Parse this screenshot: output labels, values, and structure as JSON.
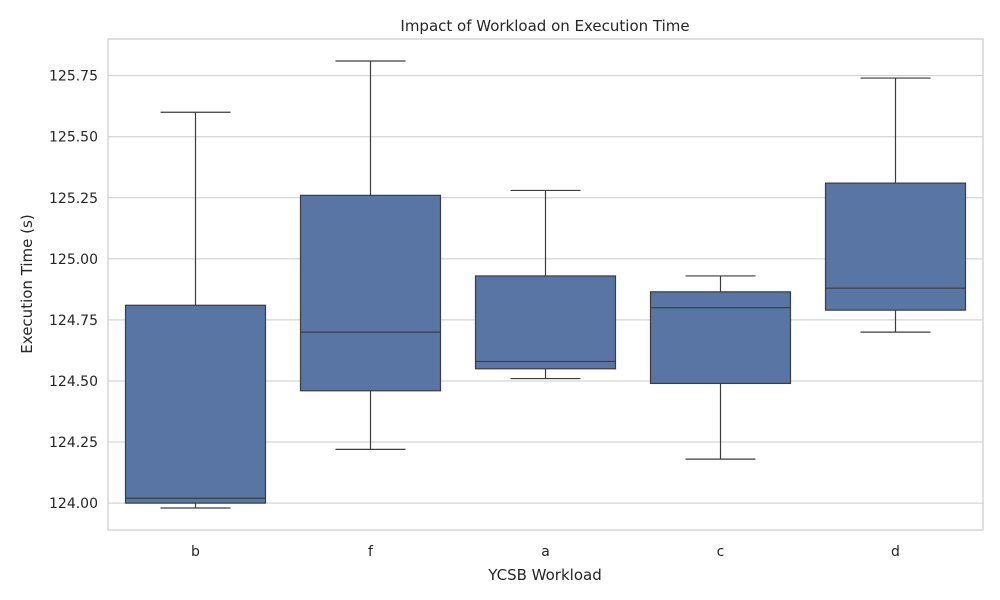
{
  "chart_data": {
    "type": "box",
    "title": "Impact of Workload on Execution Time",
    "xlabel": "YCSB Workload",
    "ylabel": "Execution Time (s)",
    "ylim": [
      123.89,
      125.9
    ],
    "yticks": [
      "124.00",
      "124.25",
      "124.50",
      "124.75",
      "125.00",
      "125.25",
      "125.50",
      "125.75"
    ],
    "grid": true,
    "box_color": "#5875a4",
    "categories": [
      "b",
      "f",
      "a",
      "c",
      "d"
    ],
    "boxes": [
      {
        "category": "b",
        "min": 123.98,
        "q1": 124.0,
        "median": 124.02,
        "q3": 124.81,
        "max": 125.6
      },
      {
        "category": "f",
        "min": 124.22,
        "q1": 124.46,
        "median": 124.7,
        "q3": 125.26,
        "max": 125.81
      },
      {
        "category": "a",
        "min": 124.51,
        "q1": 124.55,
        "median": 124.58,
        "q3": 124.93,
        "max": 125.28
      },
      {
        "category": "c",
        "min": 124.18,
        "q1": 124.49,
        "median": 124.8,
        "q3": 124.865,
        "max": 124.93
      },
      {
        "category": "d",
        "min": 124.7,
        "q1": 124.79,
        "median": 124.88,
        "q3": 125.31,
        "max": 125.74
      }
    ]
  }
}
